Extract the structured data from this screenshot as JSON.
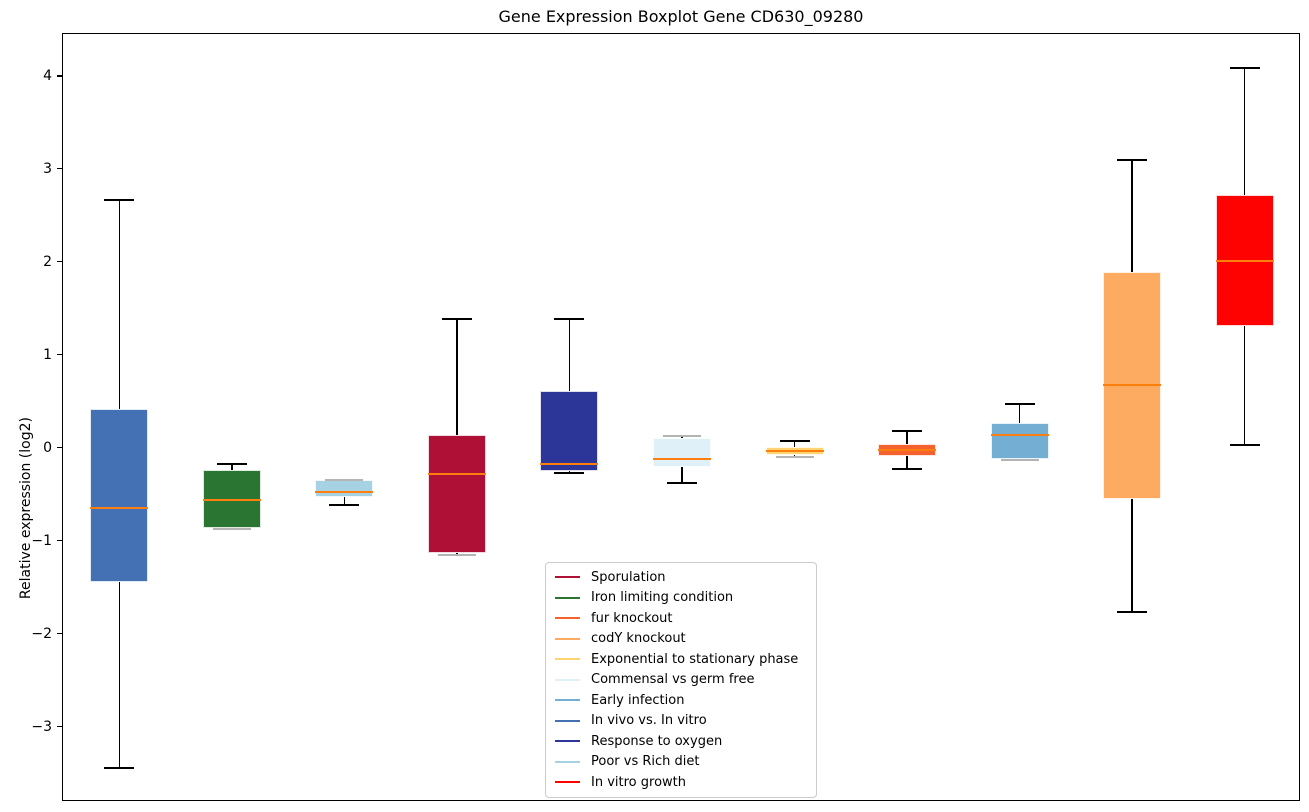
{
  "figure": {
    "background": "#ffffff",
    "median_color": "#ff7f0e",
    "whisker_color": "#000000",
    "flush_cap_color": "#b4b4b4"
  },
  "chart_data": {
    "type": "boxplot",
    "title": "Gene Expression Boxplot Gene CD630_09280",
    "ylabel": "Relative expression (log2)",
    "ylim": [
      -3.8,
      4.46
    ],
    "yticks": [
      4,
      3,
      2,
      1,
      0,
      -1,
      -2,
      -3
    ],
    "grid": false,
    "legend_position": "inside lower-center",
    "series": [
      {
        "label": "In vivo vs. In vitro",
        "color": "#4470b4",
        "whislo": -3.43,
        "q1": -1.43,
        "med": -0.64,
        "q3": 0.43,
        "whishi": 2.67,
        "lo_flush": false,
        "hi_flush": false
      },
      {
        "label": "Iron limiting condition",
        "color": "#2a7531",
        "whislo": -0.86,
        "q1": -0.85,
        "med": -0.55,
        "q3": -0.23,
        "whishi": -0.17,
        "lo_flush": true,
        "hi_flush": false
      },
      {
        "label": "Poor vs Rich diet",
        "color": "#a6d2e4",
        "whislo": -0.61,
        "q1": -0.52,
        "med": -0.47,
        "q3": -0.34,
        "whishi": -0.34,
        "lo_flush": false,
        "hi_flush": true
      },
      {
        "label": "Sporulation",
        "color": "#af1036",
        "whislo": -1.14,
        "q1": -1.12,
        "med": -0.27,
        "q3": 0.15,
        "whishi": 1.39,
        "lo_flush": true,
        "hi_flush": false
      },
      {
        "label": "Response to oxygen",
        "color": "#2c3699",
        "whislo": -0.26,
        "q1": -0.24,
        "med": -0.17,
        "q3": 0.62,
        "whishi": 1.39,
        "lo_flush": false,
        "hi_flush": false
      },
      {
        "label": "Commensal vs germ free",
        "color": "#dff0f9",
        "whislo": -0.37,
        "q1": -0.2,
        "med": -0.11,
        "q3": 0.12,
        "whishi": 0.14,
        "lo_flush": false,
        "hi_flush": true
      },
      {
        "label": "Exponential to stationary phase",
        "color": "#fcd572",
        "whislo": -0.09,
        "q1": -0.07,
        "med": -0.03,
        "q3": 0.02,
        "whishi": 0.08,
        "lo_flush": true,
        "hi_flush": false
      },
      {
        "label": "fur knockout",
        "color": "#f4622e",
        "whislo": -0.22,
        "q1": -0.08,
        "med": -0.01,
        "q3": 0.05,
        "whishi": 0.19,
        "lo_flush": false,
        "hi_flush": false
      },
      {
        "label": "Early infection",
        "color": "#74afd3",
        "whislo": -0.12,
        "q1": -0.11,
        "med": 0.15,
        "q3": 0.28,
        "whishi": 0.48,
        "lo_flush": true,
        "hi_flush": false
      },
      {
        "label": "codY knockout",
        "color": "#fcab60",
        "whislo": -1.76,
        "q1": -0.54,
        "med": 0.69,
        "q3": 1.9,
        "whishi": 3.11,
        "lo_flush": false,
        "hi_flush": false
      },
      {
        "label": "In vitro growth",
        "color": "#fe0101",
        "whislo": 0.04,
        "q1": 1.32,
        "med": 2.02,
        "q3": 2.73,
        "whishi": 4.09,
        "lo_flush": false,
        "hi_flush": false
      }
    ],
    "legend": {
      "entries": [
        "Sporulation",
        "Iron limiting condition",
        "fur knockout",
        "codY knockout",
        "Exponential to stationary phase",
        "Commensal vs germ free",
        "Early infection",
        "In vivo vs. In vitro",
        "Response to oxygen",
        "Poor vs Rich diet",
        "In vitro growth"
      ]
    }
  }
}
